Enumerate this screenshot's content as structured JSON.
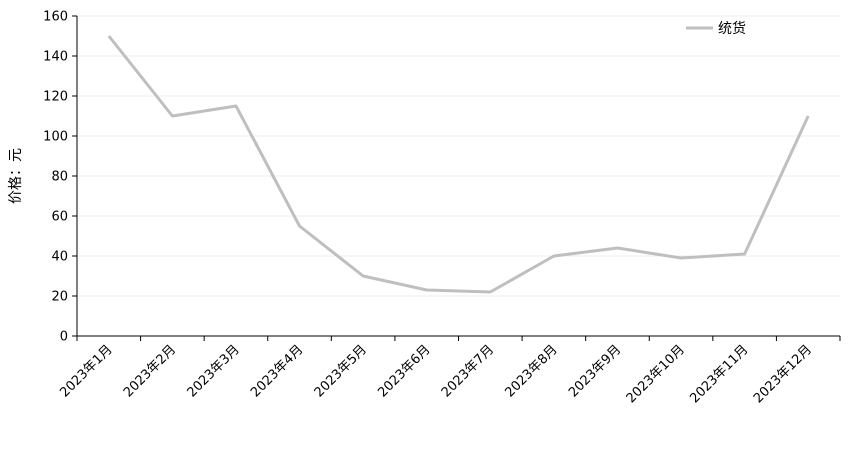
{
  "chart_data": {
    "type": "line",
    "title": "",
    "xlabel": "",
    "ylabel": "价格：元",
    "ylim": [
      0,
      160
    ],
    "yticks": [
      0,
      20,
      40,
      60,
      80,
      100,
      120,
      140,
      160
    ],
    "grid": true,
    "legend_position": "top-right",
    "categories": [
      "2023年1月",
      "2023年2月",
      "2023年3月",
      "2023年4月",
      "2023年5月",
      "2023年6月",
      "2023年7月",
      "2023年8月",
      "2023年9月",
      "2023年10月",
      "2023年11月",
      "2023年12月"
    ],
    "series": [
      {
        "name": "统货",
        "color": "#bfbfbf",
        "values": [
          150,
          110,
          115,
          55,
          30,
          23,
          22,
          40,
          44,
          39,
          41,
          110
        ]
      }
    ]
  }
}
